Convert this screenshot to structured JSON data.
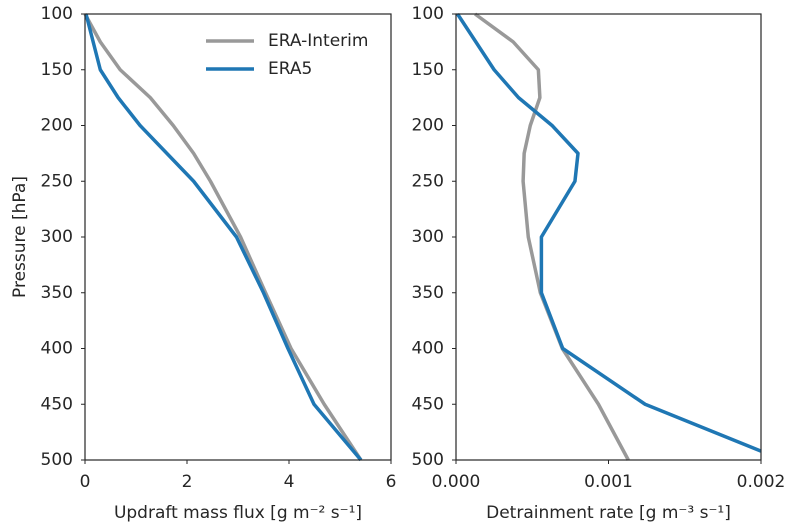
{
  "chart_data": [
    {
      "type": "line",
      "ylabel": "Pressure [hPa]",
      "xlabel": "Updraft mass flux [g m⁻² s⁻¹]",
      "xlim": [
        0,
        6
      ],
      "xticks": [
        0,
        2,
        4,
        6
      ],
      "ylim": [
        100,
        500
      ],
      "yticks": [
        100,
        150,
        200,
        250,
        300,
        350,
        400,
        450,
        500
      ],
      "y_inverted": true,
      "legend": "upper right",
      "series": [
        {
          "name": "ERA-Interim",
          "color": "#999999",
          "y": [
            100,
            125,
            150,
            175,
            200,
            225,
            250,
            300,
            350,
            400,
            450,
            500
          ],
          "values": [
            0,
            0.3,
            0.69,
            1.28,
            1.73,
            2.13,
            2.46,
            3.05,
            3.54,
            4.04,
            4.69,
            5.41
          ]
        },
        {
          "name": "ERA5",
          "color": "#1f77b4",
          "y": [
            100,
            125,
            150,
            175,
            200,
            250,
            300,
            350,
            400,
            450,
            500
          ],
          "values": [
            0.02,
            0.16,
            0.3,
            0.65,
            1.08,
            2.13,
            2.97,
            3.5,
            3.98,
            4.49,
            5.41
          ]
        }
      ]
    },
    {
      "type": "line",
      "xlabel": "Detrainment rate [g m⁻³ s⁻¹]",
      "xlim": [
        0,
        0.002
      ],
      "xticks": [
        {
          "value": 0,
          "label": "0.000"
        },
        {
          "value": 0.001,
          "label": "0.001"
        },
        {
          "value": 0.002,
          "label": "0.002"
        }
      ],
      "ylim": [
        100,
        500
      ],
      "yticks": [
        100,
        150,
        200,
        250,
        300,
        350,
        400,
        450,
        500
      ],
      "y_inverted": true,
      "series": [
        {
          "name": "ERA-Interim",
          "color": "#999999",
          "y": [
            100,
            125,
            150,
            175,
            200,
            225,
            250,
            300,
            350,
            400,
            450,
            500
          ],
          "values": [
            0.000125,
            0.000375,
            0.00054,
            0.00055,
            0.000487,
            0.000447,
            0.00044,
            0.000474,
            0.000553,
            0.000697,
            0.000934,
            0.00113
          ]
        },
        {
          "name": "ERA5",
          "color": "#1f77b4",
          "y": [
            100,
            125,
            150,
            175,
            200,
            225,
            250,
            300,
            350,
            400,
            450,
            492
          ],
          "values": [
            1e-05,
            0.00013,
            0.00025,
            0.00041,
            0.00063,
            0.0008,
            0.00078,
            0.00056,
            0.00056,
            0.0007,
            0.00124,
            0.002
          ]
        }
      ]
    }
  ]
}
